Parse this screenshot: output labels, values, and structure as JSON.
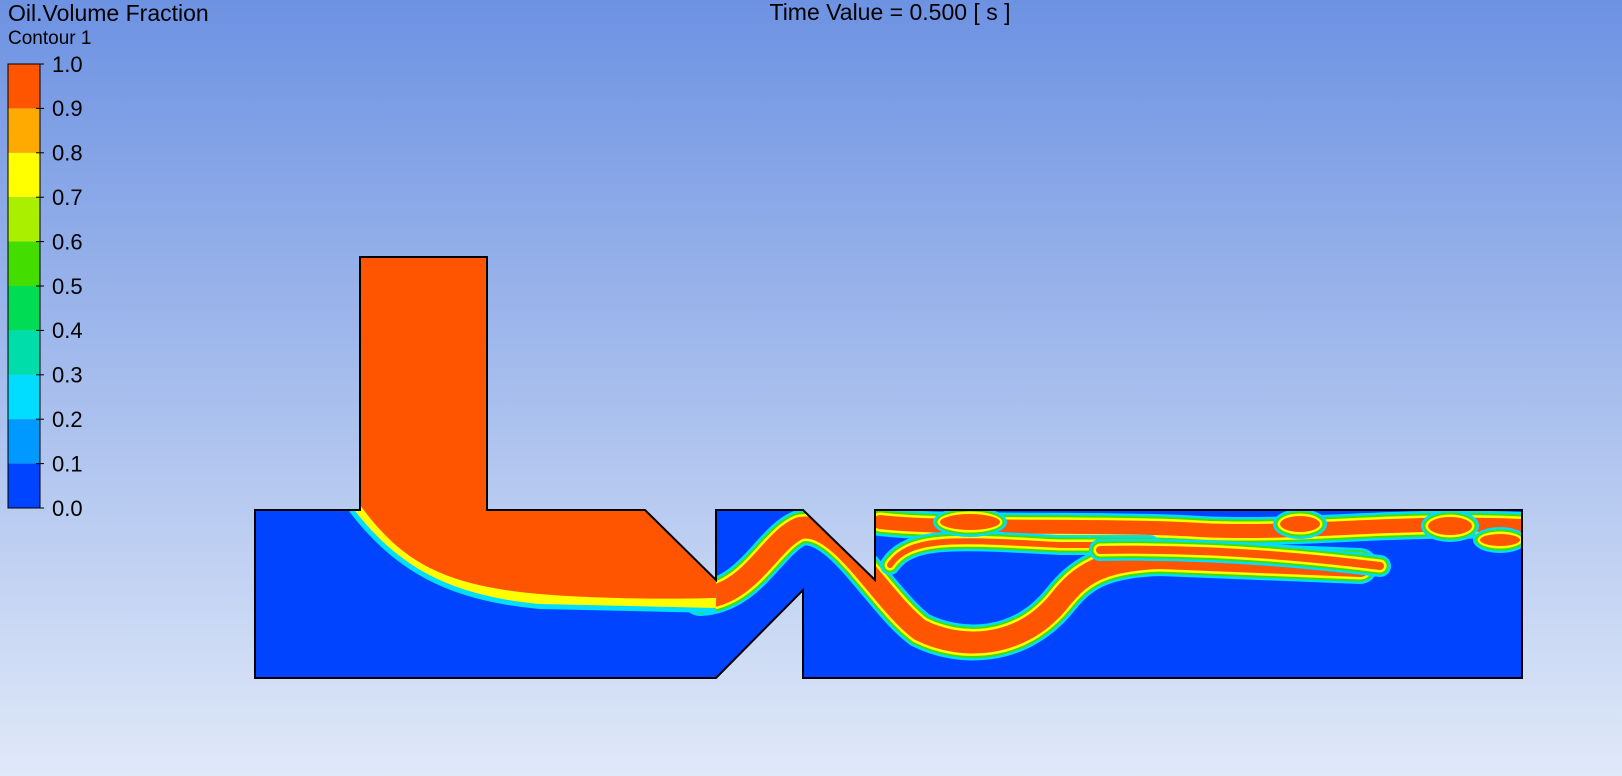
{
  "header": {
    "title": "Oil.Volume Fraction",
    "subtitle": "Contour 1",
    "time_label": "Time Value = 0.500 [ s ]"
  },
  "legend": {
    "ticks": [
      {
        "value": 1,
        "label": "1.0"
      },
      {
        "value": 0.9,
        "label": "0.9"
      },
      {
        "value": 0.8,
        "label": "0.8"
      },
      {
        "value": 0.7,
        "label": "0.7"
      },
      {
        "value": 0.6,
        "label": "0.6"
      },
      {
        "value": 0.5,
        "label": "0.5"
      },
      {
        "value": 0.4,
        "label": "0.4"
      },
      {
        "value": 0.3,
        "label": "0.3"
      },
      {
        "value": 0.2,
        "label": "0.2"
      },
      {
        "value": 0.1,
        "label": "0.1"
      },
      {
        "value": 0,
        "label": "0.0"
      }
    ],
    "colors": [
      "#ff5500",
      "#ffaa00",
      "#ffff00",
      "#aaee00",
      "#44dd00",
      "#00dd55",
      "#00ddaa",
      "#00ddff",
      "#0099ff",
      "#0044ff"
    ]
  }
}
